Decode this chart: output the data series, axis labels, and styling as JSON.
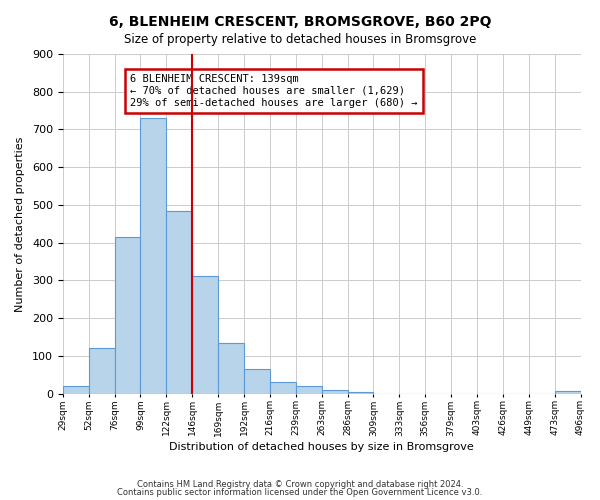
{
  "title": "6, BLENHEIM CRESCENT, BROMSGROVE, B60 2PQ",
  "subtitle": "Size of property relative to detached houses in Bromsgrove",
  "xlabel": "Distribution of detached houses by size in Bromsgrove",
  "ylabel": "Number of detached properties",
  "bar_values": [
    20,
    120,
    415,
    730,
    483,
    313,
    133,
    65,
    30,
    20,
    10,
    5,
    0,
    0,
    0,
    0,
    0,
    0,
    0,
    7
  ],
  "bin_labels": [
    "29sqm",
    "52sqm",
    "76sqm",
    "99sqm",
    "122sqm",
    "146sqm",
    "169sqm",
    "192sqm",
    "216sqm",
    "239sqm",
    "263sqm",
    "286sqm",
    "309sqm",
    "333sqm",
    "356sqm",
    "379sqm",
    "403sqm",
    "426sqm",
    "449sqm",
    "473sqm",
    "496sqm"
  ],
  "bar_color": "#b8d4ea",
  "bar_edge_color": "#5b9bd5",
  "background_color": "#ffffff",
  "grid_color": "#cccccc",
  "vline_position": 5,
  "vline_color": "#cc0000",
  "annotation_text": "6 BLENHEIM CRESCENT: 139sqm\n← 70% of detached houses are smaller (1,629)\n29% of semi-detached houses are larger (680) →",
  "annotation_box_color": "#cc0000",
  "ylim": [
    0,
    900
  ],
  "yticks": [
    0,
    100,
    200,
    300,
    400,
    500,
    600,
    700,
    800,
    900
  ],
  "footer1": "Contains HM Land Registry data © Crown copyright and database right 2024.",
  "footer2": "Contains public sector information licensed under the Open Government Licence v3.0."
}
